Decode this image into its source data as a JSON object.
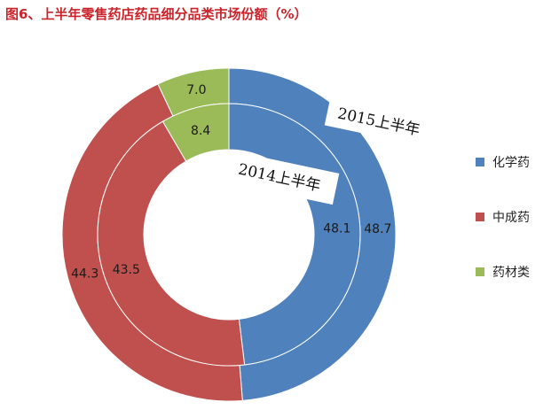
{
  "title": "图6、上半年零售药店药品细分品类市场份额（%）",
  "chart_data": {
    "type": "pie",
    "variant": "nested-donut",
    "categories": [
      "化学药",
      "中成药",
      "药材类"
    ],
    "series": [
      {
        "name": "2015上半年",
        "ring": "outer",
        "values": [
          48.7,
          44.3,
          7.0
        ]
      },
      {
        "name": "2014上半年",
        "ring": "inner",
        "values": [
          48.1,
          43.5,
          8.4
        ]
      }
    ],
    "colors": [
      "#4f81bd",
      "#c0504d",
      "#9bbb59"
    ],
    "legend_position": "right"
  }
}
